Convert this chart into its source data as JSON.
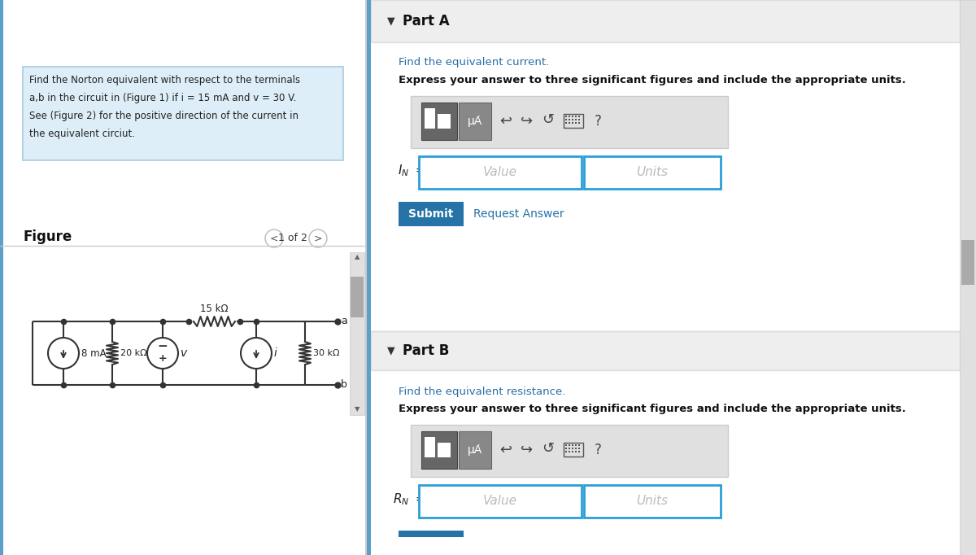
{
  "bg_color": "#f5f5f5",
  "left_bg": "#ffffff",
  "right_bg": "#f5f5f5",
  "text_box_bg": "#ddeef8",
  "text_box_border": "#a8cce0",
  "part_header_bg": "#eeeeee",
  "part_header_border": "#dddddd",
  "content_bg": "#ffffff",
  "content_border": "#dddddd",
  "input_border": "#2a9fd6",
  "submit_bg": "#2573a7",
  "submit_text": "white",
  "request_color": "#2573a7",
  "toolbar_bg": "#e0e0e0",
  "toolbar_border": "#cccccc",
  "btn1_bg": "#666666",
  "btn2_bg": "#888888",
  "icon_color": "#444444",
  "wire_color": "#333333",
  "scroll_bg": "#e0e0e0",
  "scroll_thumb": "#aaaaaa",
  "divider_color": "#cccccc",
  "left_accent": "#5ba0c8",
  "problem_text_line1": "Find the Norton equivalent with respect to the terminals",
  "problem_text_line2": "a,b in the circuit in (Figure 1) if i = 15 mA and v = 30 V.",
  "problem_text_line3": "See (Figure 2) for the positive direction of the current in",
  "problem_text_line4": "the equivalent circiut.",
  "figure_label": "Figure",
  "nav_text": "1 of 2",
  "part_a_header": "Part A",
  "part_a_sub": "Find the equivalent current.",
  "part_a_inst": "Express your answer to three significant figures and include the appropriate units.",
  "part_b_header": "Part B",
  "part_b_sub": "Find the equivalent resistance.",
  "part_b_inst": "Express your answer to three significant figures and include the appropriate units.",
  "value_text": "Value",
  "units_text": "Units",
  "submit_label": "Submit",
  "request_label": "Request Answer",
  "mua_text": "μȦ",
  "res_8ma": "8 mA",
  "res_20k": "20 kΩ",
  "res_15k": "15 kΩ",
  "res_30k": "30 kΩ",
  "label_v": "v",
  "label_i": "i",
  "label_a": "a",
  "label_b": "b"
}
